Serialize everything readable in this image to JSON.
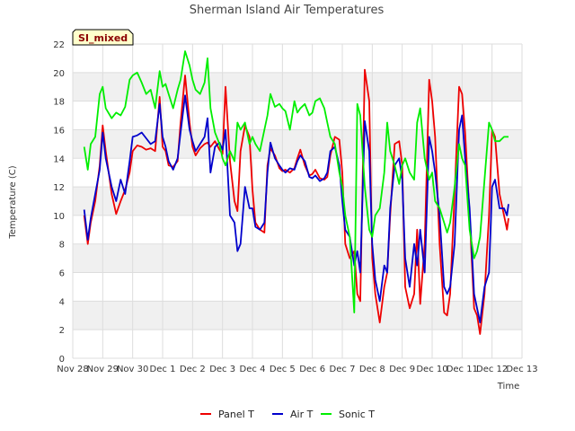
{
  "chart_data": {
    "type": "line",
    "title": "Sherman Island Air Temperatures",
    "xlabel": "Time",
    "ylabel": "Temperature (C)",
    "tag": "SI_mixed",
    "ylim": [
      0,
      22
    ],
    "yticks": [
      0,
      2,
      4,
      6,
      8,
      10,
      12,
      14,
      16,
      18,
      20,
      22
    ],
    "xlim": [
      0,
      15
    ],
    "x_unit": "days since Nov 28",
    "xticks": [
      "Nov 28",
      "Nov 29",
      "Nov 30",
      "Dec 1",
      "Dec 2",
      "Dec 3",
      "Dec 4",
      "Dec 5",
      "Dec 6",
      "Dec 7",
      "Dec 8",
      "Dec 9",
      "Dec 10",
      "Dec 11",
      "Dec 12",
      "Dec 13"
    ],
    "grid": true,
    "legend_position": "bottom",
    "series": [
      {
        "name": "Panel T",
        "color": "#ee0000",
        "x": [
          0.38,
          0.5,
          0.6,
          0.75,
          0.9,
          1.0,
          1.1,
          1.3,
          1.45,
          1.6,
          1.75,
          1.9,
          2.0,
          2.15,
          2.3,
          2.45,
          2.6,
          2.75,
          2.9,
          3.0,
          3.1,
          3.2,
          3.35,
          3.5,
          3.6,
          3.75,
          3.9,
          4.0,
          4.1,
          4.25,
          4.4,
          4.5,
          4.6,
          4.75,
          4.9,
          5.0,
          5.1,
          5.25,
          5.4,
          5.5,
          5.6,
          5.75,
          5.9,
          6.0,
          6.1,
          6.25,
          6.4,
          6.5,
          6.6,
          6.75,
          6.9,
          7.0,
          7.1,
          7.25,
          7.4,
          7.5,
          7.6,
          7.75,
          7.9,
          8.0,
          8.1,
          8.25,
          8.4,
          8.5,
          8.6,
          8.75,
          8.9,
          9.0,
          9.1,
          9.25,
          9.4,
          9.5,
          9.6,
          9.75,
          9.9,
          10.0,
          10.1,
          10.25,
          10.4,
          10.5,
          10.6,
          10.75,
          10.9,
          11.0,
          11.1,
          11.25,
          11.4,
          11.5,
          11.6,
          11.75,
          11.9,
          12.0,
          12.1,
          12.25,
          12.4,
          12.5,
          12.6,
          12.75,
          12.9,
          13.0,
          13.1,
          13.25,
          13.4,
          13.5,
          13.6,
          13.75,
          13.9,
          14.0,
          14.1,
          14.25,
          14.4,
          14.5,
          14.55
        ],
        "values": [
          10.0,
          8.0,
          9.5,
          11.0,
          13.5,
          16.3,
          14.5,
          11.5,
          10.1,
          11.0,
          11.8,
          13.0,
          14.5,
          14.9,
          14.8,
          14.6,
          14.7,
          14.5,
          18.3,
          14.8,
          14.5,
          13.5,
          13.4,
          13.8,
          16.5,
          19.8,
          16.5,
          14.8,
          14.2,
          14.7,
          15.0,
          15.1,
          14.8,
          15.2,
          14.6,
          14.3,
          19.0,
          13.8,
          11.0,
          10.3,
          14.5,
          16.3,
          15.5,
          11.8,
          9.5,
          9.0,
          8.8,
          13.5,
          14.7,
          14.2,
          13.3,
          13.1,
          13.2,
          13.0,
          13.3,
          14.0,
          14.6,
          13.5,
          12.8,
          12.9,
          13.2,
          12.6,
          12.5,
          12.7,
          14.2,
          15.5,
          15.3,
          13.0,
          8.0,
          7.0,
          7.5,
          4.5,
          4.0,
          20.2,
          18.0,
          7.0,
          4.5,
          2.5,
          5.0,
          6.0,
          10.0,
          15.0,
          15.2,
          13.5,
          5.0,
          3.5,
          4.5,
          9.0,
          3.8,
          8.0,
          19.5,
          18.0,
          15.5,
          8.0,
          3.2,
          3.0,
          4.5,
          11.5,
          19.0,
          18.5,
          15.8,
          10.0,
          3.5,
          3.0,
          1.7,
          4.5,
          10.0,
          16.0,
          15.5,
          11.5,
          10.0,
          9.0,
          9.8
        ]
      },
      {
        "name": "Air T",
        "color": "#0000cc",
        "x": [
          0.38,
          0.5,
          0.6,
          0.75,
          0.9,
          1.0,
          1.1,
          1.3,
          1.45,
          1.6,
          1.75,
          1.9,
          2.0,
          2.15,
          2.3,
          2.45,
          2.6,
          2.75,
          2.9,
          3.0,
          3.1,
          3.2,
          3.35,
          3.5,
          3.6,
          3.75,
          3.9,
          4.0,
          4.1,
          4.25,
          4.4,
          4.5,
          4.6,
          4.75,
          4.9,
          5.0,
          5.1,
          5.25,
          5.4,
          5.5,
          5.6,
          5.75,
          5.9,
          6.0,
          6.1,
          6.25,
          6.4,
          6.5,
          6.6,
          6.75,
          6.9,
          7.0,
          7.1,
          7.25,
          7.4,
          7.5,
          7.6,
          7.75,
          7.9,
          8.0,
          8.1,
          8.25,
          8.4,
          8.5,
          8.6,
          8.75,
          8.9,
          9.0,
          9.1,
          9.25,
          9.4,
          9.5,
          9.6,
          9.75,
          9.9,
          10.0,
          10.1,
          10.25,
          10.4,
          10.5,
          10.6,
          10.75,
          10.9,
          11.0,
          11.1,
          11.25,
          11.4,
          11.5,
          11.6,
          11.75,
          11.9,
          12.0,
          12.1,
          12.25,
          12.4,
          12.5,
          12.6,
          12.75,
          12.9,
          13.0,
          13.1,
          13.25,
          13.4,
          13.5,
          13.6,
          13.75,
          13.9,
          14.0,
          14.1,
          14.25,
          14.4,
          14.5,
          14.55
        ],
        "values": [
          10.4,
          8.3,
          9.8,
          11.5,
          13.2,
          15.8,
          14.0,
          12.0,
          11.0,
          12.5,
          11.5,
          13.8,
          15.5,
          15.6,
          15.8,
          15.4,
          15.0,
          15.2,
          17.8,
          15.5,
          14.8,
          13.8,
          13.2,
          14.0,
          15.8,
          18.4,
          16.0,
          15.2,
          14.5,
          15.0,
          15.5,
          16.8,
          13.0,
          14.8,
          15.1,
          14.6,
          16.0,
          10.0,
          9.5,
          7.5,
          8.0,
          12.0,
          10.5,
          10.5,
          9.2,
          9.0,
          9.5,
          13.0,
          15.1,
          14.0,
          13.5,
          13.2,
          13.0,
          13.3,
          13.2,
          13.8,
          14.2,
          13.8,
          12.7,
          12.6,
          12.8,
          12.4,
          12.6,
          13.0,
          14.5,
          14.8,
          13.5,
          11.0,
          9.0,
          8.5,
          6.5,
          7.5,
          6.0,
          16.6,
          14.5,
          8.0,
          5.5,
          4.0,
          6.5,
          6.0,
          10.5,
          13.5,
          14.0,
          12.5,
          7.0,
          5.0,
          8.0,
          6.5,
          9.0,
          6.0,
          15.5,
          14.5,
          13.0,
          10.0,
          5.0,
          4.5,
          5.0,
          8.0,
          16.0,
          17.0,
          14.0,
          10.5,
          4.5,
          3.5,
          2.5,
          5.0,
          6.0,
          12.0,
          12.5,
          10.5,
          10.5,
          10.0,
          10.8
        ]
      },
      {
        "name": "Sonic T",
        "color": "#00ee00",
        "x": [
          0.38,
          0.5,
          0.6,
          0.75,
          0.9,
          1.0,
          1.1,
          1.3,
          1.45,
          1.6,
          1.75,
          1.9,
          2.0,
          2.15,
          2.3,
          2.45,
          2.6,
          2.75,
          2.9,
          3.0,
          3.1,
          3.2,
          3.35,
          3.5,
          3.6,
          3.75,
          3.9,
          4.0,
          4.1,
          4.25,
          4.4,
          4.5,
          4.6,
          4.75,
          4.9,
          5.0,
          5.1,
          5.25,
          5.4,
          5.5,
          5.6,
          5.75,
          5.9,
          6.0,
          6.1,
          6.25,
          6.4,
          6.5,
          6.6,
          6.75,
          6.9,
          7.0,
          7.1,
          7.25,
          7.4,
          7.5,
          7.6,
          7.75,
          7.9,
          8.0,
          8.1,
          8.25,
          8.4,
          8.5,
          8.6,
          8.75,
          8.9,
          9.0,
          9.1,
          9.25,
          9.4,
          9.5,
          9.6,
          9.75,
          9.9,
          10.0,
          10.1,
          10.25,
          10.4,
          10.5,
          10.6,
          10.75,
          10.9,
          11.0,
          11.1,
          11.25,
          11.4,
          11.5,
          11.6,
          11.75,
          11.9,
          12.0,
          12.1,
          12.25,
          12.4,
          12.5,
          12.6,
          12.75,
          12.9,
          13.0,
          13.1,
          13.25,
          13.4,
          13.5,
          13.6,
          13.75,
          13.9,
          14.0,
          14.1,
          14.25,
          14.4,
          14.5,
          14.55
        ],
        "values": [
          14.8,
          13.2,
          15.0,
          15.5,
          18.5,
          19.0,
          17.5,
          16.8,
          17.2,
          17.0,
          17.6,
          19.5,
          19.8,
          20.0,
          19.3,
          18.5,
          18.8,
          17.5,
          20.1,
          19.0,
          19.2,
          18.5,
          17.5,
          18.8,
          19.5,
          21.5,
          20.5,
          19.5,
          18.8,
          18.5,
          19.3,
          21.0,
          17.5,
          15.8,
          15.0,
          14.0,
          13.5,
          14.5,
          13.8,
          16.5,
          16.0,
          16.5,
          15.0,
          15.5,
          15.0,
          14.5,
          16.0,
          17.0,
          18.5,
          17.6,
          17.8,
          17.5,
          17.3,
          16.0,
          18.0,
          17.2,
          17.5,
          17.8,
          17.0,
          17.2,
          18.0,
          18.2,
          17.5,
          16.5,
          15.5,
          15.0,
          13.0,
          12.0,
          10.0,
          8.5,
          3.2,
          17.8,
          17.0,
          12.0,
          9.0,
          8.5,
          10.0,
          10.5,
          13.0,
          16.5,
          14.5,
          13.5,
          12.2,
          13.5,
          14.0,
          13.0,
          12.5,
          16.5,
          17.5,
          14.0,
          12.5,
          13.0,
          11.0,
          10.5,
          9.5,
          8.8,
          9.5,
          12.0,
          15.0,
          14.0,
          13.5,
          9.0,
          7.0,
          7.5,
          8.5,
          12.5,
          16.5,
          16.0,
          15.2,
          15.2,
          15.5,
          15.5,
          15.5
        ]
      }
    ]
  }
}
